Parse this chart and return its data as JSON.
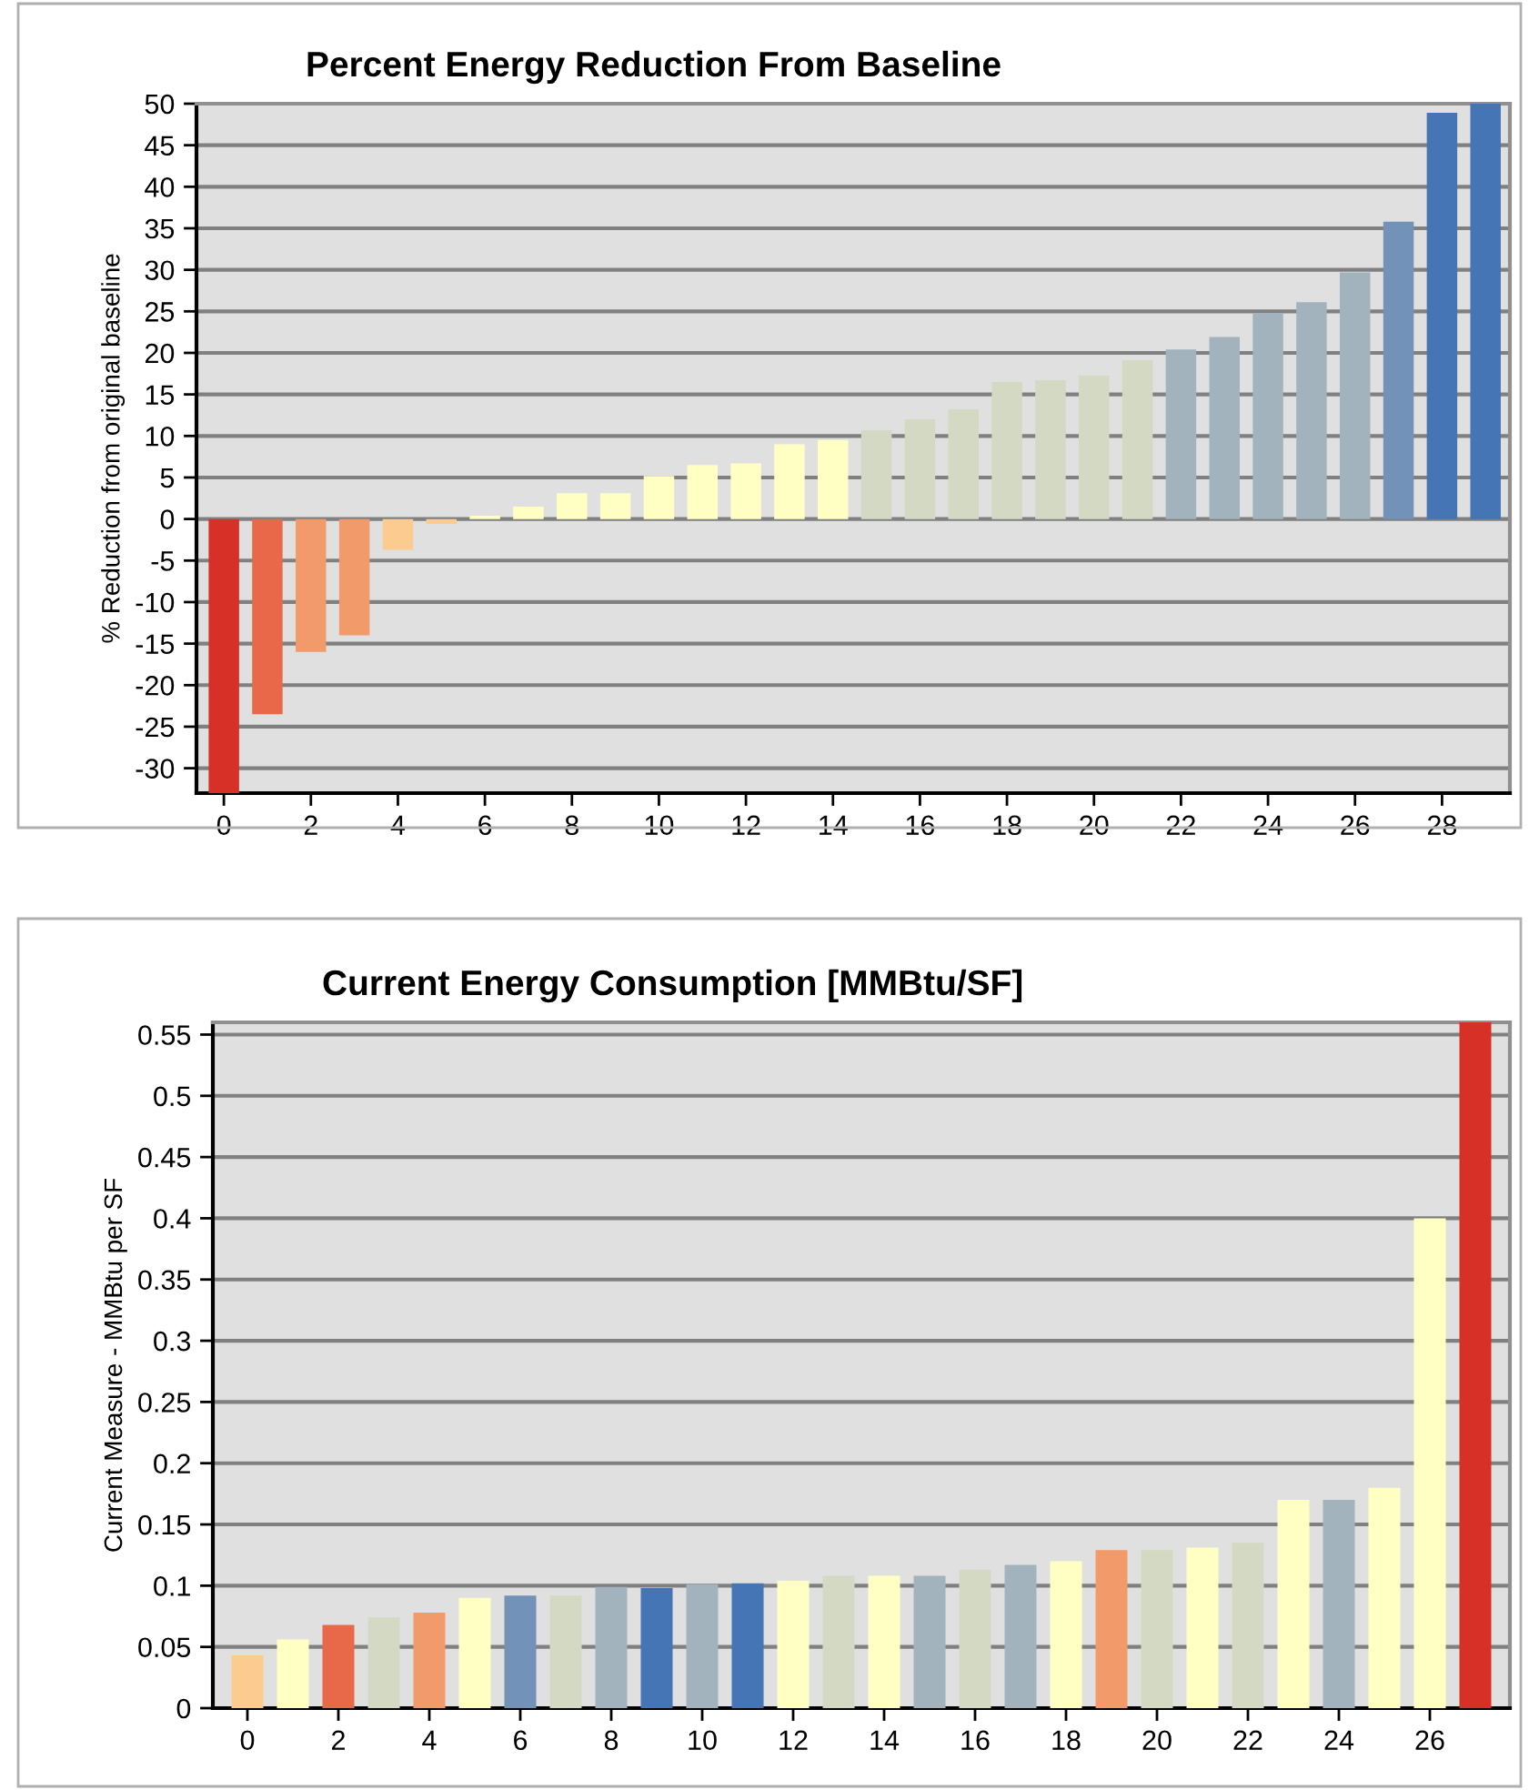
{
  "chart_data": [
    {
      "type": "bar",
      "title": "Percent Energy Reduction From Baseline",
      "ylabel": "% Reduction from original baseline",
      "x": [
        0,
        1,
        2,
        3,
        4,
        5,
        6,
        7,
        8,
        9,
        10,
        11,
        12,
        13,
        14,
        15,
        16,
        17,
        18,
        19,
        20,
        21,
        22,
        23,
        24,
        25,
        26,
        27,
        28,
        29
      ],
      "values": [
        -33,
        -23.5,
        -16,
        -14,
        -3.7,
        -0.6,
        0.4,
        1.5,
        3.1,
        3.1,
        5.2,
        6.5,
        6.7,
        9,
        9.5,
        10.7,
        12,
        13.2,
        16.5,
        16.7,
        17.3,
        19.1,
        20.4,
        21.9,
        24.8,
        26.1,
        29.7,
        35.8,
        48.9,
        50
      ],
      "colors": [
        "#d73027",
        "#e8694a",
        "#f39a6b",
        "#f39a6b",
        "#fccb8f",
        "#fccb8f",
        "#ffffc4",
        "#ffffc4",
        "#ffffc4",
        "#ffffc4",
        "#ffffc4",
        "#ffffc4",
        "#ffffc4",
        "#ffffc4",
        "#ffffc4",
        "#d3d9c2",
        "#d3d9c2",
        "#d3d9c2",
        "#d3d9c2",
        "#d3d9c2",
        "#d3d9c2",
        "#d3d9c2",
        "#a2b3bd",
        "#a2b3bd",
        "#a2b3bd",
        "#a2b3bd",
        "#a2b3bd",
        "#7292b8",
        "#4575b4",
        "#4575b4"
      ],
      "xlim": [
        -0.63,
        29.56
      ],
      "xticks": [
        0,
        2,
        4,
        6,
        8,
        10,
        12,
        14,
        16,
        18,
        20,
        22,
        24,
        26,
        28
      ],
      "ylim": [
        -33,
        50
      ],
      "yticks": [
        -30,
        -25,
        -20,
        -15,
        -10,
        -5,
        0,
        5,
        10,
        15,
        20,
        25,
        30,
        35,
        40,
        45,
        50
      ],
      "grid": "y"
    },
    {
      "type": "bar",
      "title": "Current Energy Consumption [MMBtu/SF]",
      "ylabel": "Current Measure - MMBtu per SF",
      "x": [
        0,
        1,
        2,
        3,
        4,
        5,
        6,
        7,
        8,
        9,
        10,
        11,
        12,
        13,
        14,
        15,
        16,
        17,
        18,
        19,
        20,
        21,
        22,
        23,
        24,
        25,
        26,
        27
      ],
      "values": [
        0.043,
        0.056,
        0.068,
        0.074,
        0.078,
        0.09,
        0.092,
        0.092,
        0.099,
        0.098,
        0.101,
        0.102,
        0.104,
        0.108,
        0.108,
        0.108,
        0.113,
        0.117,
        0.12,
        0.129,
        0.129,
        0.131,
        0.135,
        0.17,
        0.17,
        0.18,
        0.4,
        0.56
      ],
      "colors": [
        "#fccb8f",
        "#ffffc4",
        "#e8694a",
        "#d3d9c2",
        "#f39a6b",
        "#ffffc4",
        "#7292b8",
        "#d3d9c2",
        "#a2b3bd",
        "#4575b4",
        "#a2b3bd",
        "#4575b4",
        "#ffffc4",
        "#d3d9c2",
        "#ffffc4",
        "#a2b3bd",
        "#d3d9c2",
        "#a2b3bd",
        "#ffffc4",
        "#f39a6b",
        "#d3d9c2",
        "#ffffc4",
        "#d3d9c2",
        "#ffffc4",
        "#a2b3bd",
        "#ffffc4",
        "#ffffc4",
        "#d73027"
      ],
      "xlim": [
        -0.76,
        27.76
      ],
      "xticks": [
        0,
        2,
        4,
        6,
        8,
        10,
        12,
        14,
        16,
        18,
        20,
        22,
        24,
        26
      ],
      "ylim": [
        0,
        0.56
      ],
      "yticks": [
        0,
        0.05,
        0.1,
        0.15,
        0.2,
        0.25,
        0.3,
        0.35,
        0.4,
        0.45,
        0.5,
        0.55
      ],
      "grid": "y"
    }
  ]
}
